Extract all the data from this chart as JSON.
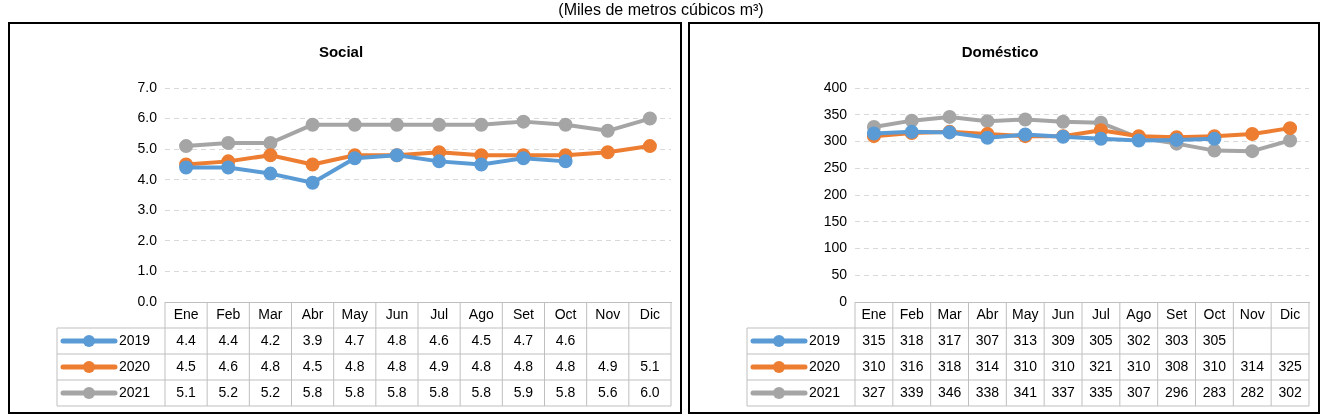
{
  "chart_data": [
    {
      "type": "line",
      "title": "Social",
      "annotations": [
        "(Miles de metros cúbicos m³)"
      ],
      "categories": [
        "Ene",
        "Feb",
        "Mar",
        "Abr",
        "May",
        "Jun",
        "Jul",
        "Ago",
        "Set",
        "Oct",
        "Nov",
        "Dic"
      ],
      "series": [
        {
          "name": "2019",
          "color": "#5b9bd5",
          "values": [
            4.4,
            4.4,
            4.2,
            3.9,
            4.7,
            4.8,
            4.6,
            4.5,
            4.7,
            4.6,
            null,
            null
          ],
          "value_labels": [
            "4.4",
            "4.4",
            "4.2",
            "3.9",
            "4.7",
            "4.8",
            "4.6",
            "4.5",
            "4.7",
            "4.6",
            null,
            null
          ]
        },
        {
          "name": "2020",
          "color": "#ed7d31",
          "values": [
            4.5,
            4.6,
            4.8,
            4.5,
            4.8,
            4.8,
            4.9,
            4.8,
            4.8,
            4.8,
            4.9,
            5.1
          ],
          "value_labels": [
            "4.5",
            "4.6",
            "4.8",
            "4.5",
            "4.8",
            "4.8",
            "4.9",
            "4.8",
            "4.8",
            "4.8",
            "4.9",
            "5.1"
          ]
        },
        {
          "name": "2021",
          "color": "#a5a5a5",
          "values": [
            5.1,
            5.2,
            5.2,
            5.8,
            5.8,
            5.8,
            5.8,
            5.8,
            5.9,
            5.8,
            5.6,
            6.0
          ],
          "value_labels": [
            "5.1",
            "5.2",
            "5.2",
            "5.8",
            "5.8",
            "5.8",
            "5.8",
            "5.8",
            "5.9",
            "5.8",
            "5.6",
            "6.0"
          ]
        }
      ],
      "ylim": [
        0,
        7
      ],
      "yticks": [
        {
          "value": 0,
          "label": "0.0"
        },
        {
          "value": 1,
          "label": "1.0"
        },
        {
          "value": 2,
          "label": "2.0"
        },
        {
          "value": 3,
          "label": "3.0"
        },
        {
          "value": 4,
          "label": "4.0"
        },
        {
          "value": 5,
          "label": "5.0"
        },
        {
          "value": 6,
          "label": "6.0"
        },
        {
          "value": 7,
          "label": "7.0"
        }
      ],
      "grid": "y",
      "legend": "bottom",
      "marker": "circle"
    },
    {
      "type": "line",
      "title": "Doméstico",
      "categories": [
        "Ene",
        "Feb",
        "Mar",
        "Abr",
        "May",
        "Jun",
        "Jul",
        "Ago",
        "Set",
        "Oct",
        "Nov",
        "Dic"
      ],
      "series": [
        {
          "name": "2019",
          "color": "#5b9bd5",
          "values": [
            315,
            318,
            317,
            307,
            313,
            309,
            305,
            302,
            303,
            305,
            null,
            null
          ]
        },
        {
          "name": "2020",
          "color": "#ed7d31",
          "values": [
            310,
            316,
            318,
            314,
            310,
            310,
            321,
            310,
            308,
            310,
            314,
            325
          ]
        },
        {
          "name": "2021",
          "color": "#a5a5a5",
          "values": [
            327,
            339,
            346,
            338,
            341,
            337,
            335,
            307,
            296,
            283,
            282,
            302
          ]
        }
      ],
      "ylim": [
        0,
        400
      ],
      "yticks": [
        0,
        50,
        100,
        150,
        200,
        250,
        300,
        350,
        400
      ],
      "grid": "y",
      "legend": "bottom",
      "marker": "circle",
      "data_labels": true
    }
  ]
}
